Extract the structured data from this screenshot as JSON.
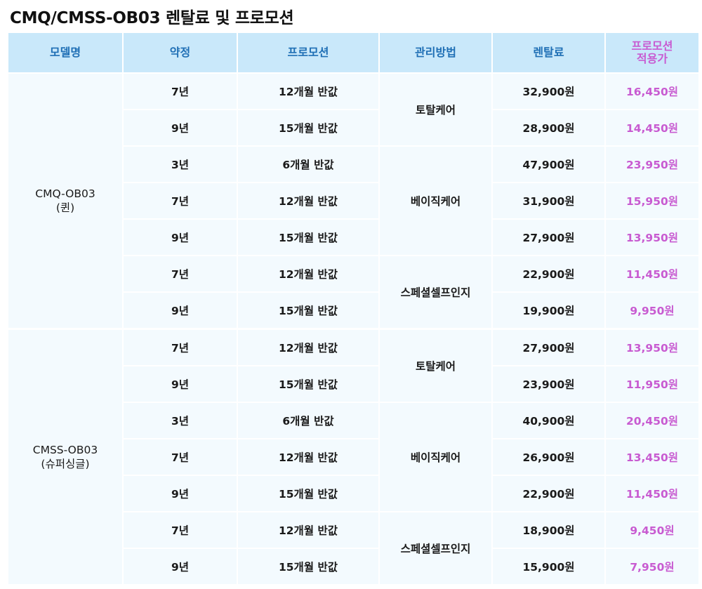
{
  "title": "CMQ/CMSS-OB03 렌탈료 및 프로모션",
  "headers": {
    "model": "모델명",
    "term": "약정",
    "promotion": "프로모션",
    "care": "관리방법",
    "fee": "렌탈료",
    "promo_price_line1": "프로모션",
    "promo_price_line2": "적용가"
  },
  "groups": [
    {
      "model_line1": "CMQ-OB03",
      "model_line2": "(퀸)",
      "care_groups": [
        {
          "care": "토탈케어",
          "rows": [
            {
              "term": "7년",
              "promotion": "12개월 반값",
              "fee": "32,900원",
              "promo_price": "16,450원"
            },
            {
              "term": "9년",
              "promotion": "15개월 반값",
              "fee": "28,900원",
              "promo_price": "14,450원"
            }
          ]
        },
        {
          "care": "베이직케어",
          "rows": [
            {
              "term": "3년",
              "promotion": "6개월 반값",
              "fee": "47,900원",
              "promo_price": "23,950원"
            },
            {
              "term": "7년",
              "promotion": "12개월 반값",
              "fee": "31,900원",
              "promo_price": "15,950원"
            },
            {
              "term": "9년",
              "promotion": "15개월 반값",
              "fee": "27,900원",
              "promo_price": "13,950원"
            }
          ]
        },
        {
          "care": "스페셜셀프인지",
          "rows": [
            {
              "term": "7년",
              "promotion": "12개월 반값",
              "fee": "22,900원",
              "promo_price": "11,450원"
            },
            {
              "term": "9년",
              "promotion": "15개월 반값",
              "fee": "19,900원",
              "promo_price": "9,950원"
            }
          ]
        }
      ]
    },
    {
      "model_line1": "CMSS-OB03",
      "model_line2": "(슈퍼싱글)",
      "care_groups": [
        {
          "care": "토탈케어",
          "rows": [
            {
              "term": "7년",
              "promotion": "12개월 반값",
              "fee": "27,900원",
              "promo_price": "13,950원"
            },
            {
              "term": "9년",
              "promotion": "15개월 반값",
              "fee": "23,900원",
              "promo_price": "11,950원"
            }
          ]
        },
        {
          "care": "베이직케어",
          "rows": [
            {
              "term": "3년",
              "promotion": "6개월 반값",
              "fee": "40,900원",
              "promo_price": "20,450원"
            },
            {
              "term": "7년",
              "promotion": "12개월 반값",
              "fee": "26,900원",
              "promo_price": "13,450원"
            },
            {
              "term": "9년",
              "promotion": "15개월 반값",
              "fee": "22,900원",
              "promo_price": "11,450원"
            }
          ]
        },
        {
          "care": "스페셜셀프인지",
          "rows": [
            {
              "term": "7년",
              "promotion": "12개월 반값",
              "fee": "18,900원",
              "promo_price": "9,450원"
            },
            {
              "term": "9년",
              "promotion": "15개월 반값",
              "fee": "15,900원",
              "promo_price": "7,950원"
            }
          ]
        }
      ]
    }
  ],
  "colors": {
    "header_bg": "#c9e8fa",
    "header_text": "#1f6fb5",
    "promo_accent": "#c85bd1",
    "row_bg": "#f3fafe"
  }
}
